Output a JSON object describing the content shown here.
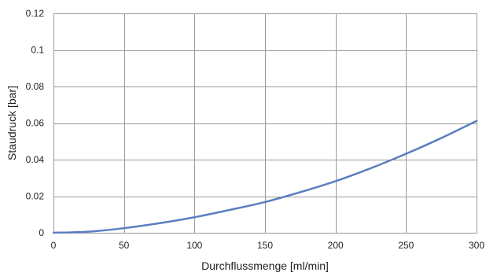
{
  "chart_data": {
    "type": "line",
    "title": "",
    "xlabel": "Durchflussmenge [ml/min]",
    "ylabel": "Staudruck [bar]",
    "xlim": [
      0,
      300
    ],
    "ylim": [
      0,
      0.12
    ],
    "x_ticks": [
      0,
      50,
      100,
      150,
      200,
      250,
      300
    ],
    "x_tick_labels": [
      "0",
      "50",
      "100",
      "150",
      "200",
      "250",
      "300"
    ],
    "y_ticks": [
      0,
      0.02,
      0.04,
      0.06,
      0.08,
      0.1,
      0.12
    ],
    "y_tick_labels": [
      "0",
      "0.02",
      "0.04",
      "0.06",
      "0.08",
      "0.1",
      "0.12"
    ],
    "grid": true,
    "legend": "none",
    "series": [
      {
        "color": "#5b7fc0",
        "x": [
          0,
          25,
          50,
          75,
          100,
          125,
          150,
          175,
          200,
          225,
          250,
          275,
          300
        ],
        "y": [
          0,
          0.0006,
          0.0025,
          0.0052,
          0.0085,
          0.0125,
          0.0168,
          0.0222,
          0.0282,
          0.0353,
          0.0432,
          0.0518,
          0.0612
        ]
      }
    ]
  }
}
